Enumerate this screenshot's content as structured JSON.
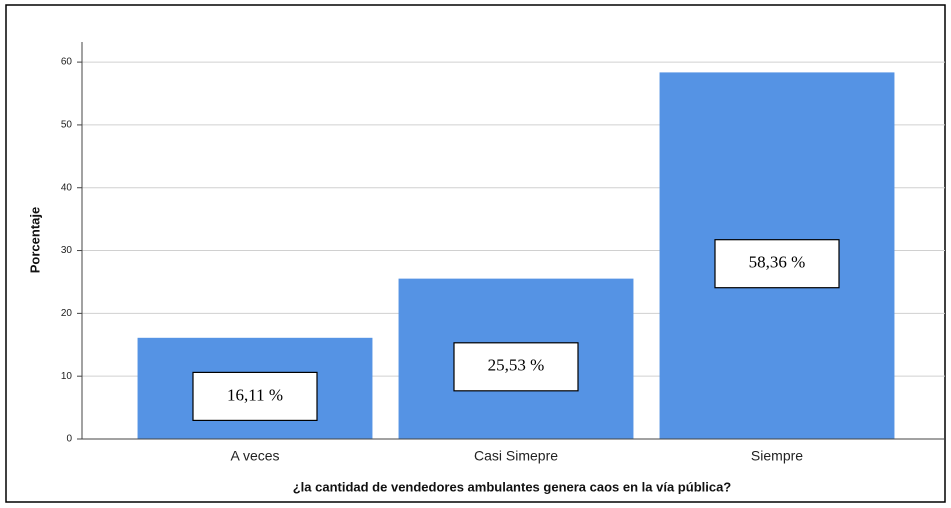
{
  "chart_data": {
    "type": "bar",
    "xlabel": "¿la cantidad de vendedores ambulantes genera caos en la vía pública?",
    "ylabel": "Porcentaje",
    "categories": [
      "A veces",
      "Casi Simepre",
      "Siempre"
    ],
    "values": [
      16.11,
      25.53,
      58.36
    ],
    "value_labels": [
      "16,11 %",
      "25,53 %",
      "58,36 %"
    ],
    "color": "#5593e4",
    "ylim": [
      0,
      63.2
    ],
    "yticks": [
      0,
      10,
      20,
      30,
      40,
      50,
      60
    ],
    "grid": true
  }
}
